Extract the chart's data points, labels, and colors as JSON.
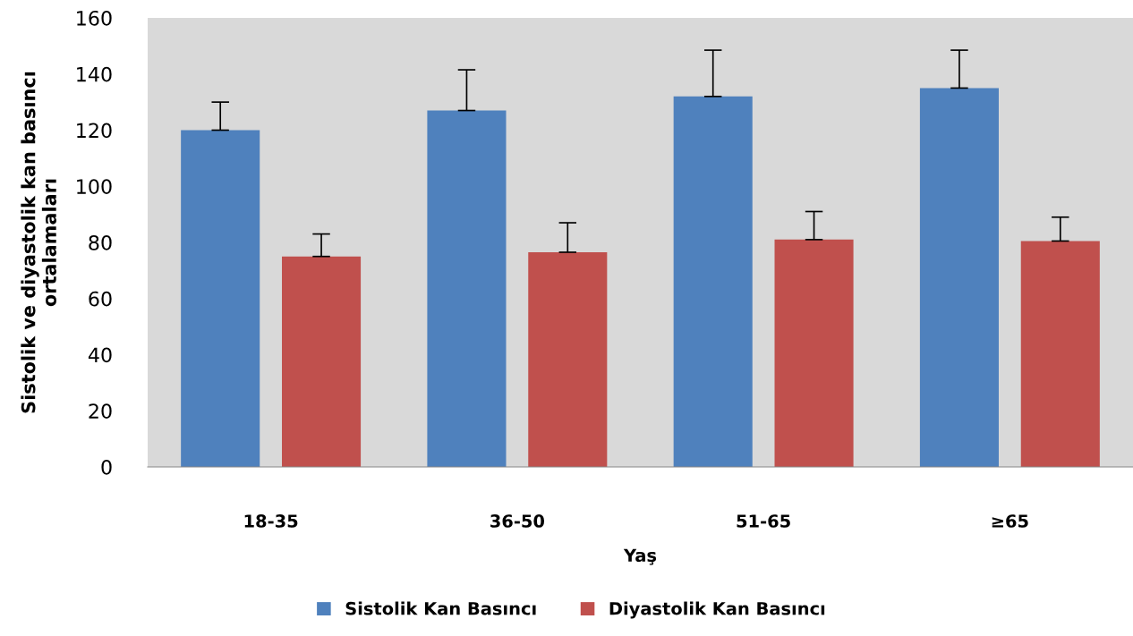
{
  "chart_data": {
    "type": "bar",
    "xlabel": "Yaş",
    "ylabel": "Sistolik ve diyastolik kan basıncı\nortalamaları",
    "categories": [
      "18-35",
      "36-50",
      "51-65",
      "≥65"
    ],
    "series": [
      {
        "name": "Sistolik Kan Basıncı",
        "color": "#4f81bd",
        "values": [
          120,
          127,
          132,
          135
        ],
        "errors": [
          [
            120,
            130
          ],
          [
            127,
            141.5
          ],
          [
            132,
            148.5
          ],
          [
            135,
            148.5
          ]
        ]
      },
      {
        "name": "Diyastolik Kan Basıncı",
        "color": "#c0504d",
        "values": [
          75,
          76.5,
          81,
          80.5
        ],
        "errors": [
          [
            75,
            83
          ],
          [
            76.5,
            87
          ],
          [
            81,
            91
          ],
          [
            80.5,
            89
          ]
        ]
      }
    ],
    "ylim": [
      0,
      160
    ],
    "yticks": [
      0,
      20,
      40,
      60,
      80,
      100,
      120,
      140,
      160
    ],
    "grid": false,
    "legend": "bottom"
  }
}
